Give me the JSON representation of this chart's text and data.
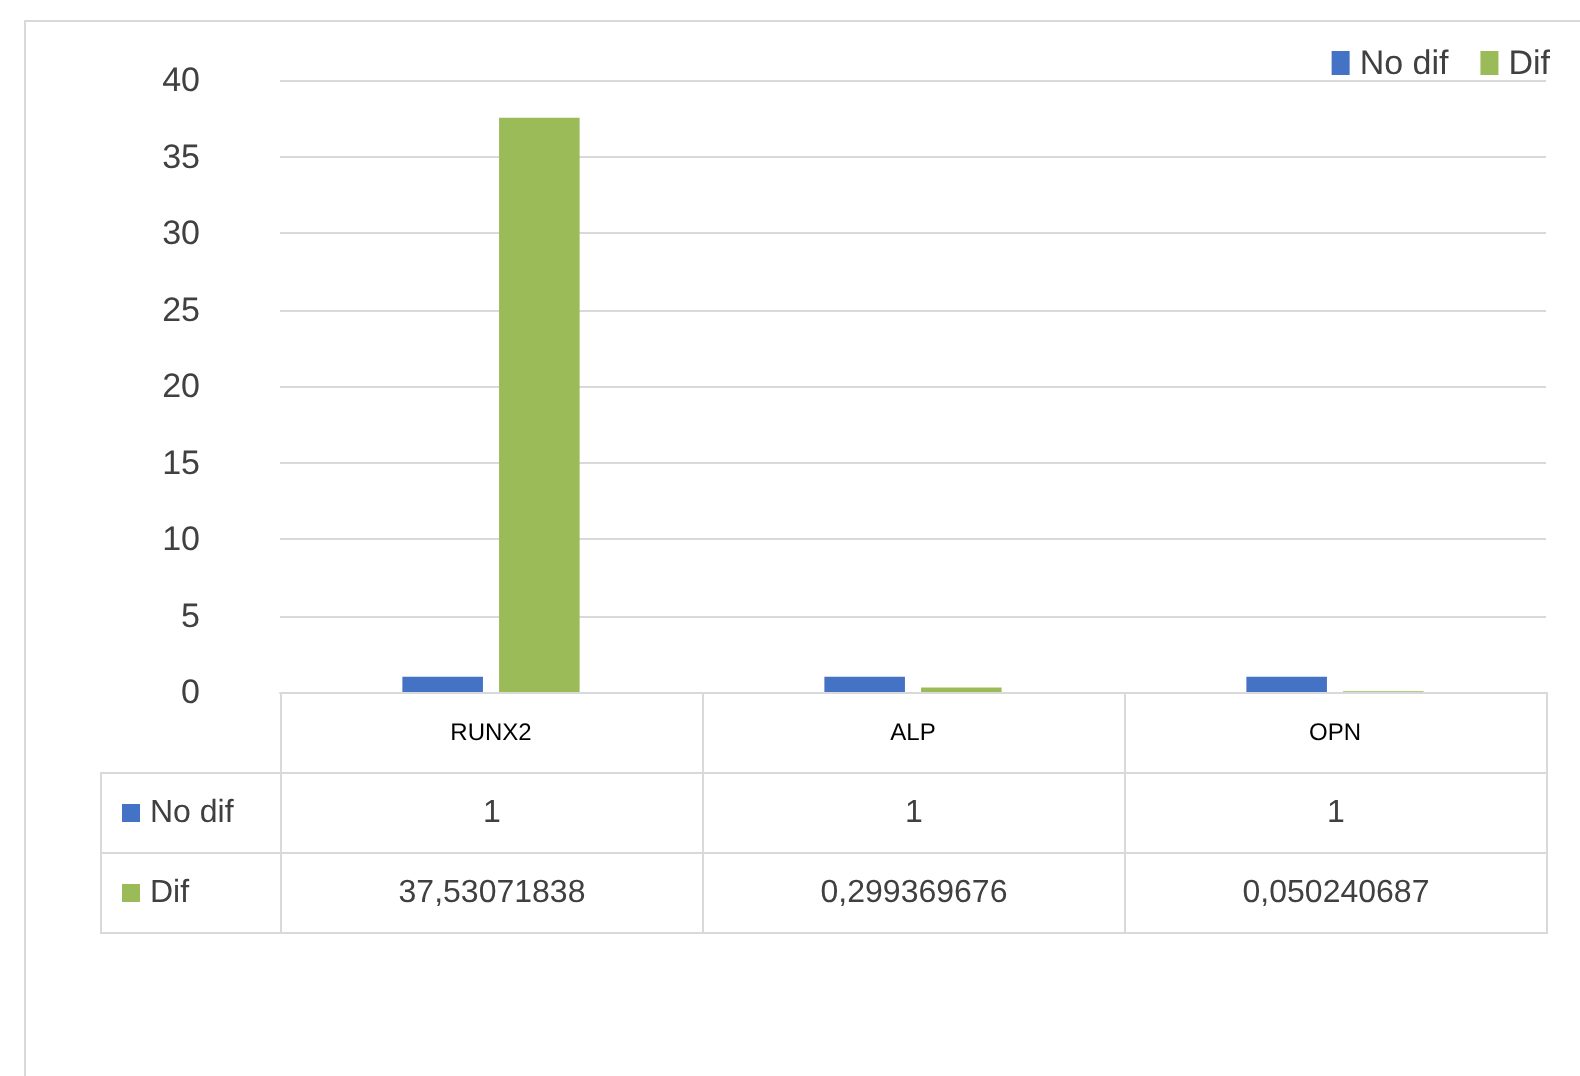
{
  "chart_data": {
    "type": "bar",
    "categories": [
      "RUNX2",
      "ALP",
      "OPN"
    ],
    "series": [
      {
        "name": "No dif",
        "color": "#4472c4",
        "values": [
          1,
          1,
          1
        ],
        "value_labels": [
          "1",
          "1",
          "1"
        ]
      },
      {
        "name": "Dif",
        "color": "#9bbb59",
        "values": [
          37.53071838,
          0.299369676,
          0.050240687
        ],
        "value_labels": [
          "37,53071838",
          "0,299369676",
          "0,050240687"
        ]
      }
    ],
    "ylim": [
      0,
      40
    ],
    "yticks": [
      0,
      5,
      10,
      15,
      20,
      25,
      30,
      35,
      40
    ],
    "grid": "y",
    "legend": "top right"
  }
}
